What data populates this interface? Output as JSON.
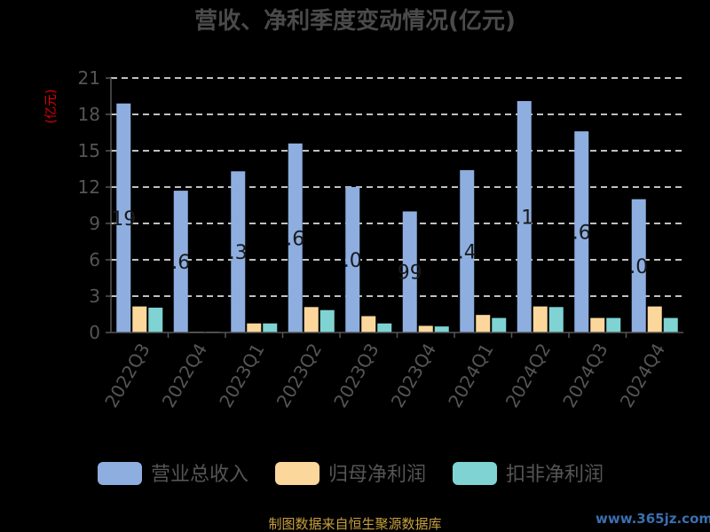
{
  "chart_data": {
    "type": "bar",
    "title": "营收、净利季度变动情况(亿元)",
    "ylabel": "(亿元)",
    "ylim": [
      0,
      21
    ],
    "yticks": [
      0,
      3,
      6,
      9,
      12,
      15,
      18,
      21
    ],
    "grid": true,
    "legend_position": "bottom",
    "categories": [
      "2022Q3",
      "2022Q4",
      "2023Q1",
      "2023Q2",
      "2023Q3",
      "2023Q4",
      "2024Q1",
      "2024Q2",
      "2024Q3",
      "2024Q4"
    ],
    "series": [
      {
        "name": "营业总收入",
        "color": "#8eaee0",
        "values": [
          18.9,
          11.7,
          13.3,
          15.6,
          12.0,
          9.99,
          13.4,
          19.1,
          16.6,
          11.0
        ]
      },
      {
        "name": "归母净利润",
        "color": "#fbd79c",
        "values": [
          2.15,
          0.05,
          0.75,
          2.1,
          1.35,
          0.55,
          1.45,
          2.15,
          1.2,
          2.15
        ]
      },
      {
        "name": "扣非净利润",
        "color": "#7fd3d3",
        "values": [
          2.05,
          0.02,
          0.75,
          1.85,
          0.75,
          0.5,
          1.2,
          2.1,
          1.2,
          1.2
        ]
      }
    ],
    "bar_labels": [
      "19",
      ".6",
      ".3",
      ".6",
      ".0",
      "99",
      ".4",
      ".1",
      ".6",
      ".0"
    ]
  },
  "footer": {
    "source": "制图数据来自恒生聚源数据库",
    "watermark": "www.365jz.com"
  }
}
